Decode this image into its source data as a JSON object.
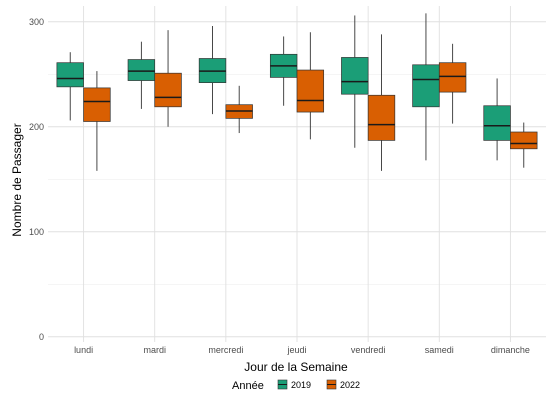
{
  "chart_data": {
    "type": "boxplot",
    "title": "",
    "xlabel": "Jour de la Semaine",
    "ylabel": "Nombre de Passager",
    "ylim": [
      -5,
      315
    ],
    "yticks": [
      0,
      100,
      200,
      300
    ],
    "grid": true,
    "legend": {
      "title": "Année",
      "position": "bottom"
    },
    "categories": [
      "lundi",
      "mardi",
      "mercredi",
      "jeudi",
      "vendredi",
      "samedi",
      "dimanche"
    ],
    "series": [
      {
        "name": "2019",
        "color": "#1b9e77",
        "boxes": [
          {
            "min": 206,
            "q1": 238,
            "median": 246,
            "q3": 261,
            "max": 271
          },
          {
            "min": 217,
            "q1": 244,
            "median": 253,
            "q3": 264,
            "max": 281
          },
          {
            "min": 212,
            "q1": 242,
            "median": 253,
            "q3": 265,
            "max": 296
          },
          {
            "min": 220,
            "q1": 247,
            "median": 258,
            "q3": 269,
            "max": 286
          },
          {
            "min": 180,
            "q1": 231,
            "median": 243,
            "q3": 266,
            "max": 306
          },
          {
            "min": 168,
            "q1": 219,
            "median": 245,
            "q3": 259,
            "max": 308
          },
          {
            "min": 168,
            "q1": 187,
            "median": 201,
            "q3": 220,
            "max": 246
          }
        ]
      },
      {
        "name": "2022",
        "color": "#d95f02",
        "boxes": [
          {
            "min": 158,
            "q1": 205,
            "median": 224,
            "q3": 237,
            "max": 253
          },
          {
            "min": 200,
            "q1": 219,
            "median": 228,
            "q3": 251,
            "max": 292
          },
          {
            "min": 194,
            "q1": 208,
            "median": 215,
            "q3": 221,
            "max": 239
          },
          {
            "min": 188,
            "q1": 214,
            "median": 225,
            "q3": 254,
            "max": 290
          },
          {
            "min": 158,
            "q1": 187,
            "median": 202,
            "q3": 230,
            "max": 288
          },
          {
            "min": 203,
            "q1": 233,
            "median": 248,
            "q3": 261,
            "max": 279
          },
          {
            "min": 161,
            "q1": 179,
            "median": 184,
            "q3": 195,
            "max": 204
          }
        ]
      }
    ]
  }
}
